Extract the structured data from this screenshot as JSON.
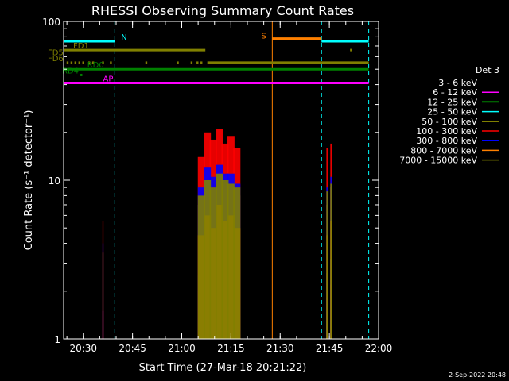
{
  "chart_data": {
    "type": "line",
    "title": "RHESSI Observing Summary Count Rates",
    "xlabel": "Start Time (27-Mar-18 20:21:22)",
    "ylabel": "Count Rate (s⁻¹ detector⁻¹)",
    "xlim_min": [
      20.4,
      22.0
    ],
    "ylim": [
      1,
      100
    ],
    "yscale": "log",
    "x_ticks": [
      "20:30",
      "20:45",
      "21:00",
      "21:15",
      "21:30",
      "21:45",
      "22:00"
    ],
    "x_tick_values": [
      20.5,
      20.75,
      21.0,
      21.25,
      21.5,
      21.75,
      22.0
    ],
    "y_ticks": [
      "1",
      "10",
      "100"
    ],
    "y_tick_values": [
      1,
      10,
      100
    ],
    "legend": {
      "title": "Det 3",
      "placement": "right",
      "entries": [
        {
          "label": "3 - 6 keV",
          "color": "#000000"
        },
        {
          "label": "6 - 12 keV",
          "color": "#ff00ff"
        },
        {
          "label": "12 - 25 keV",
          "color": "#00ff00"
        },
        {
          "label": "25 - 50 keV",
          "color": "#00ffff"
        },
        {
          "label": "50 - 100 keV",
          "color": "#ffff00"
        },
        {
          "label": "100 - 300 keV",
          "color": "#ff0000"
        },
        {
          "label": "300 - 800 keV",
          "color": "#0000ff"
        },
        {
          "label": "800 - 7000 keV",
          "color": "#ff8000"
        },
        {
          "label": "7000 - 15000 keV",
          "color": "#808000"
        }
      ]
    },
    "flag_bars": [
      {
        "label": "N",
        "color": "#00ffff",
        "y": 75,
        "segments": [
          [
            20.4,
            20.66
          ],
          [
            21.71,
            21.95
          ]
        ]
      },
      {
        "label": "S",
        "color": "#ff8000",
        "y": 78,
        "segments": [
          [
            21.46,
            21.71
          ]
        ]
      },
      {
        "label": "FD1",
        "color": "#808000",
        "y": 66,
        "segments": [
          [
            20.4,
            21.12
          ]
        ],
        "dots": [
          21.86
        ]
      },
      {
        "label": "FD5",
        "color": "#808000",
        "y": 60,
        "segments": [],
        "dots": []
      },
      {
        "label": "FD6",
        "color": "#808000",
        "y": 55,
        "segments": [
          [
            21.13,
            21.95
          ]
        ],
        "dots": [
          20.42,
          20.44,
          20.46,
          20.48,
          20.5,
          20.53,
          20.55,
          20.6,
          20.64,
          20.82,
          20.98,
          21.05,
          21.08,
          21.1
        ]
      },
      {
        "label": "RD0",
        "color": "#008000",
        "y": 50,
        "segments": [
          [
            20.4,
            21.95
          ]
        ]
      },
      {
        "label": "RD4",
        "color": "#008000",
        "y": 46,
        "segments": [],
        "dots": [
          20.49
        ]
      },
      {
        "label": "AP",
        "color": "#ff00ff",
        "y": 41,
        "segments": [
          [
            20.4,
            21.95
          ]
        ]
      }
    ],
    "vertical_markers": [
      {
        "x": 20.4,
        "color": "#00ffff"
      },
      {
        "x": 20.66,
        "color": "#00ffff"
      },
      {
        "x": 21.46,
        "color": "#ff8000"
      },
      {
        "x": 21.71,
        "color": "#00ffff"
      },
      {
        "x": 21.95,
        "color": "#00ffff"
      }
    ],
    "series": [
      {
        "name": "3 - 6 keV",
        "color": "#000000",
        "x": [
          21.1,
          21.13,
          21.16,
          21.19,
          21.22,
          21.25,
          21.28,
          21.74,
          21.76
        ],
        "y": [
          1.0,
          1.4,
          1.2,
          1.5,
          1.3,
          1.4,
          1.2,
          1.2,
          1.5
        ]
      },
      {
        "name": "6 - 12 keV",
        "color": "#ff00ff",
        "x": [
          20.6,
          21.1,
          21.13,
          21.16,
          21.19,
          21.22,
          21.25,
          21.28,
          21.74,
          21.76
        ],
        "y": [
          1.5,
          2.0,
          2.2,
          2.5,
          2.0,
          2.2,
          2.4,
          2.0,
          1.8,
          2.2
        ]
      },
      {
        "name": "12 - 25 keV",
        "color": "#00ff00",
        "x": [
          21.1,
          21.13,
          21.16,
          21.19,
          21.22,
          21.25,
          21.28,
          21.74,
          21.76
        ],
        "y": [
          1.3,
          1.5,
          1.4,
          1.6,
          1.5,
          1.4,
          1.4,
          1.3,
          1.3
        ]
      },
      {
        "name": "25 - 50 keV",
        "color": "#00ffff",
        "x": [
          21.1,
          21.13,
          21.16,
          21.19,
          21.22,
          21.25,
          21.28,
          21.74,
          21.76
        ],
        "y": [
          2.5,
          3.5,
          3.0,
          4.0,
          3.2,
          3.6,
          3.0,
          2.6,
          3.2
        ]
      },
      {
        "name": "50 - 100 keV",
        "color": "#ffff00",
        "x": [
          21.1,
          21.13,
          21.16,
          21.19,
          21.22,
          21.25,
          21.28,
          21.74,
          21.76
        ],
        "y": [
          7.0,
          9.0,
          8.5,
          10.0,
          9.5,
          8.5,
          8.0,
          7.0,
          9.0
        ]
      },
      {
        "name": "100 - 300 keV",
        "color": "#ff0000",
        "x": [
          20.6,
          21.1,
          21.13,
          21.16,
          21.19,
          21.22,
          21.25,
          21.28,
          21.74,
          21.76
        ],
        "y": [
          5.5,
          14.0,
          20.0,
          18.0,
          21.0,
          17.0,
          19.0,
          16.0,
          16.0,
          17.0
        ]
      },
      {
        "name": "300 - 800 keV",
        "color": "#0000ff",
        "x": [
          20.6,
          21.1,
          21.13,
          21.16,
          21.19,
          21.22,
          21.25,
          21.28,
          21.74,
          21.76
        ],
        "y": [
          4.0,
          9.0,
          12.0,
          10.5,
          12.5,
          11.0,
          11.0,
          9.5,
          9.0,
          10.5
        ]
      },
      {
        "name": "800 - 7000 keV",
        "color": "#ff8000",
        "x": [
          20.6,
          21.1,
          21.13,
          21.16,
          21.19,
          21.22,
          21.25,
          21.28,
          21.74,
          21.76
        ],
        "y": [
          3.5,
          4.5,
          6.0,
          5.0,
          7.0,
          5.5,
          6.0,
          5.0,
          4.5,
          5.5
        ]
      },
      {
        "name": "7000 - 15000 keV",
        "color": "#808000",
        "x": [
          21.1,
          21.13,
          21.16,
          21.19,
          21.22,
          21.25,
          21.28,
          21.74,
          21.76
        ],
        "y": [
          8.0,
          10.0,
          9.0,
          11.0,
          10.0,
          9.5,
          9.0,
          8.5,
          9.5
        ]
      }
    ]
  },
  "footer": {
    "date": "2-Sep-2022 20:48"
  }
}
